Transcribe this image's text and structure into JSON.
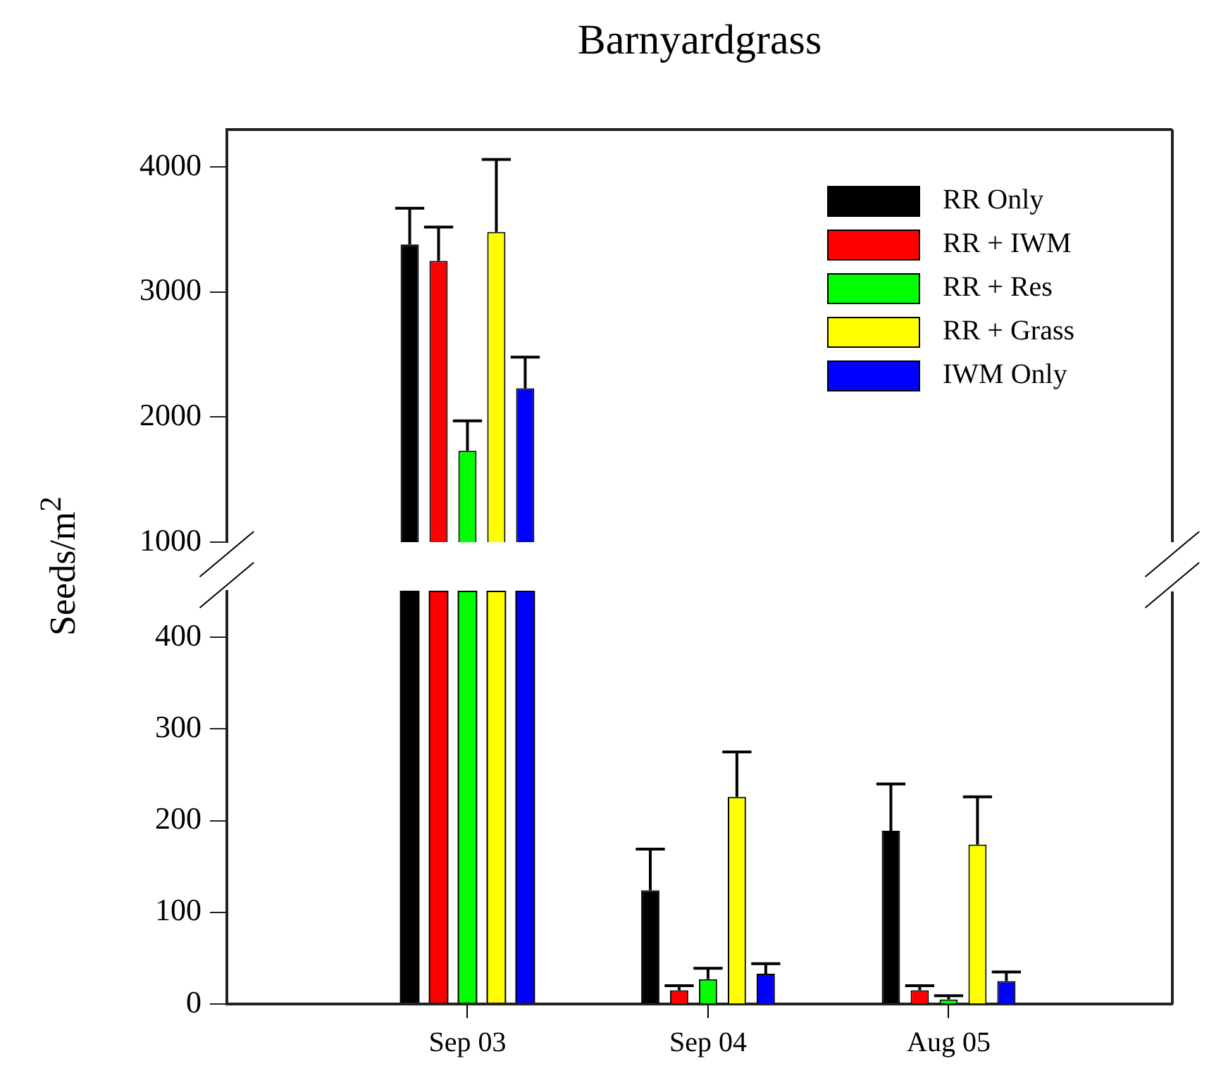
{
  "chart_data": [
    {
      "type": "bar",
      "title": "Barnyardgrass",
      "ylabel": "Seeds/m$^{2}$",
      "categories": [
        null,
        null,
        null
      ],
      "series": [
        {
          "name": "RR Only",
          "color": "#000000",
          "values": [
            3380,
            null,
            null
          ],
          "errors": [
            290,
            null,
            null
          ]
        },
        {
          "name": "RR + IWM",
          "color": "#ff0000",
          "values": [
            3250,
            null,
            null
          ],
          "errors": [
            270,
            null,
            null
          ]
        },
        {
          "name": "RR + Res",
          "color": "#00ff00",
          "values": [
            1730,
            null,
            null
          ],
          "errors": [
            240,
            null,
            null
          ]
        },
        {
          "name": "RR + Grass",
          "color": "#ffff00",
          "values": [
            3480,
            null,
            null
          ],
          "errors": [
            580,
            null,
            null
          ]
        },
        {
          "name": "IWM Only",
          "color": "#0000ff",
          "values": [
            2230,
            null,
            null
          ],
          "errors": [
            250,
            null,
            null
          ]
        }
      ],
      "ylim": [
        1000,
        4300
      ],
      "yticks": [
        1000,
        2000,
        3000,
        4000
      ],
      "legend": "top right",
      "tick_labels": "y"
    },
    {
      "type": "bar",
      "categories": [
        "Sep 03",
        "Sep 04",
        "Aug 05"
      ],
      "series": [
        {
          "color": "#000000",
          "values": [
            null,
            124,
            189
          ],
          "errors": [
            null,
            45,
            51
          ]
        },
        {
          "color": "#ff0000",
          "values": [
            null,
            15,
            15
          ],
          "errors": [
            null,
            5,
            5
          ]
        },
        {
          "color": "#00ff00",
          "values": [
            null,
            27,
            5
          ],
          "errors": [
            null,
            12,
            4
          ]
        },
        {
          "color": "#ffff00",
          "values": [
            null,
            226,
            174
          ],
          "errors": [
            null,
            49,
            52
          ]
        },
        {
          "color": "#0000ff",
          "values": [
            null,
            33,
            25
          ],
          "errors": [
            null,
            11,
            10
          ]
        }
      ],
      "ylim": [
        0,
        450
      ],
      "yticks": [
        0,
        100,
        200,
        300,
        400
      ]
    }
  ]
}
